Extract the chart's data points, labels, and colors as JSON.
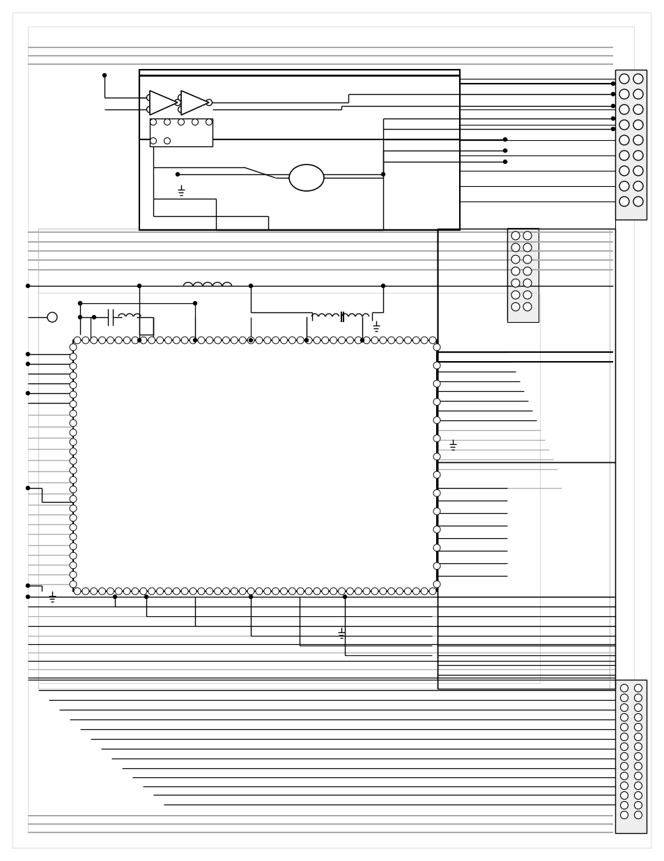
{
  "bg_color": "#ffffff",
  "lc": "#000000",
  "gc": "#aaaaaa",
  "fig_width": 9.54,
  "fig_height": 12.35
}
